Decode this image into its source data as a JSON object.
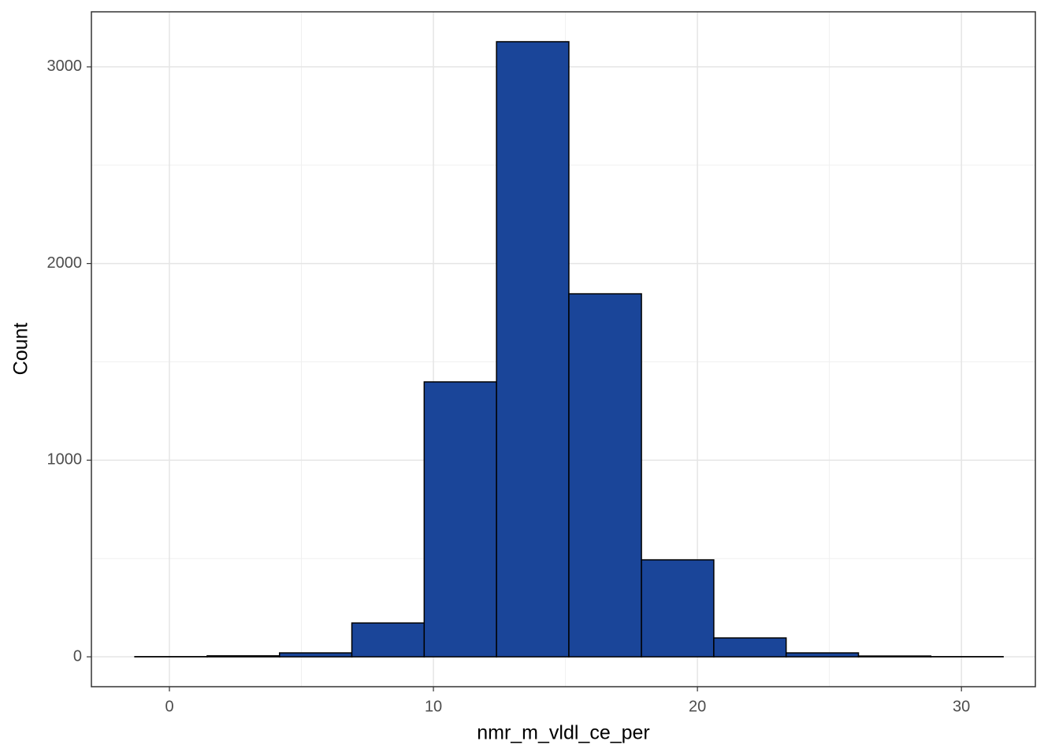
{
  "chart_data": {
    "type": "histogram",
    "x_label": "nmr_m_vldl_ce_per",
    "y_label": "Count",
    "bins": [
      -1.31,
      1.43,
      4.17,
      6.91,
      9.65,
      12.39,
      15.13,
      17.88,
      20.62,
      23.36,
      26.1,
      28.84,
      31.58
    ],
    "counts": [
      1,
      5,
      20,
      172,
      1398,
      3128,
      1846,
      493,
      96,
      20,
      4,
      1
    ],
    "color": "#1a4599",
    "edge_color": "#000000",
    "xlim": [
      -2.955,
      32.8
    ],
    "ylim": [
      -152,
      3280
    ],
    "xticks": [
      0,
      10,
      20,
      30
    ],
    "yticks": [
      0,
      1000,
      2000,
      3000
    ],
    "x_minor_grid": [
      5,
      15,
      25
    ],
    "y_minor_grid": [
      500,
      1500,
      2500
    ],
    "grid": true
  }
}
